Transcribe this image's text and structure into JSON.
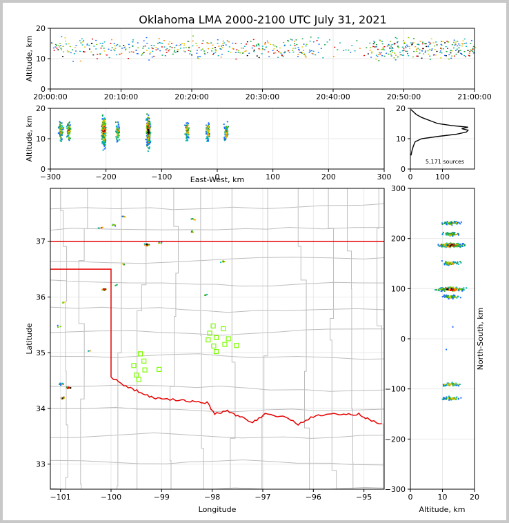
{
  "chart_data": {
    "type": "scatter",
    "title": "Oklahoma LMA 2000-2100 UTC July 31, 2021",
    "colors": {
      "source_palette": [
        "#1a6cff",
        "#00b4b4",
        "#14a03c",
        "#78c800",
        "#e6c800",
        "#ff8c00",
        "#e60000",
        "#000000"
      ],
      "state_border": "#e60000",
      "county_lines": "#bdbdbd",
      "station_markers": "#7cfc00",
      "grid": "#e8e8e8"
    },
    "time_altitude": {
      "ylabel": "Altitude, km",
      "ylim": [
        0,
        20
      ],
      "yticks": [
        "0",
        "10",
        "20"
      ],
      "xticks": [
        "20:00:00",
        "20:10:00",
        "20:20:00",
        "20:30:00",
        "20:40:00",
        "20:50:00",
        "21:00:00"
      ],
      "xlim_minutes": [
        0,
        60
      ],
      "activity_minutes": [
        {
          "from": 0,
          "to": 38,
          "weight": 3
        },
        {
          "from": 38,
          "to": 45,
          "weight": 1
        },
        {
          "from": 45,
          "to": 60,
          "weight": 5
        }
      ],
      "altitude_core_km": [
        11,
        16
      ]
    },
    "ew_altitude": {
      "ylabel": "Altitude, km",
      "xlabel": "East-West, km",
      "xlim": [
        -300,
        300
      ],
      "ylim": [
        0,
        20
      ],
      "xticks": [
        "−300",
        "−200",
        "−100",
        "0",
        "100",
        "200",
        "300"
      ],
      "yticks": [
        "0",
        "10",
        "20"
      ],
      "columns_km": [
        -282,
        -268,
        -205,
        -180,
        -125,
        -55,
        -18,
        15
      ]
    },
    "histogram": {
      "ylim": [
        0,
        20
      ],
      "xlim": [
        0,
        200
      ],
      "xticks": [
        "0",
        "100"
      ],
      "yticks": [
        "0",
        "10",
        "20"
      ],
      "label": "5,171 sources",
      "profile": [
        {
          "alt": 4.5,
          "count": 2
        },
        {
          "alt": 6,
          "count": 5
        },
        {
          "alt": 7.5,
          "count": 9
        },
        {
          "alt": 9,
          "count": 15
        },
        {
          "alt": 10,
          "count": 35
        },
        {
          "alt": 10.8,
          "count": 90
        },
        {
          "alt": 11.5,
          "count": 145
        },
        {
          "alt": 12.2,
          "count": 175
        },
        {
          "alt": 12.8,
          "count": 180
        },
        {
          "alt": 13.3,
          "count": 160
        },
        {
          "alt": 13.8,
          "count": 180
        },
        {
          "alt": 14.3,
          "count": 130
        },
        {
          "alt": 15,
          "count": 85
        },
        {
          "alt": 16,
          "count": 60
        },
        {
          "alt": 17,
          "count": 35
        },
        {
          "alt": 18,
          "count": 18
        },
        {
          "alt": 19,
          "count": 8
        },
        {
          "alt": 19.6,
          "count": 2
        }
      ]
    },
    "map": {
      "xlabel": "Longitude",
      "ylabel": "Latitude",
      "xlim": [
        -101.2,
        -94.6
      ],
      "ylim": [
        32.55,
        37.95
      ],
      "xticks": [
        "−101",
        "−100",
        "−99",
        "−98",
        "−97",
        "−96",
        "−95"
      ],
      "yticks": [
        "33",
        "34",
        "35",
        "36",
        "37"
      ],
      "clusters": [
        {
          "lon": -101.0,
          "lat": 34.45,
          "n": 10
        },
        {
          "lon": -100.85,
          "lat": 34.38,
          "n": 18
        },
        {
          "lon": -100.98,
          "lat": 34.2,
          "n": 14
        },
        {
          "lon": -101.05,
          "lat": 35.48,
          "n": 3
        },
        {
          "lon": -100.95,
          "lat": 35.92,
          "n": 4
        },
        {
          "lon": -100.15,
          "lat": 36.15,
          "n": 22
        },
        {
          "lon": -99.9,
          "lat": 36.22,
          "n": 3
        },
        {
          "lon": -99.75,
          "lat": 36.6,
          "n": 3
        },
        {
          "lon": -99.3,
          "lat": 36.95,
          "n": 26
        },
        {
          "lon": -99.05,
          "lat": 36.98,
          "n": 6
        },
        {
          "lon": -99.75,
          "lat": 37.45,
          "n": 6
        },
        {
          "lon": -99.95,
          "lat": 37.3,
          "n": 5
        },
        {
          "lon": -100.2,
          "lat": 37.25,
          "n": 4
        },
        {
          "lon": -98.4,
          "lat": 37.18,
          "n": 6
        },
        {
          "lon": -98.38,
          "lat": 37.4,
          "n": 5
        },
        {
          "lon": -97.8,
          "lat": 36.65,
          "n": 6
        },
        {
          "lon": -98.15,
          "lat": 36.05,
          "n": 4
        },
        {
          "lon": -100.45,
          "lat": 35.05,
          "n": 3
        }
      ],
      "stations": [
        {
          "lon": -99.42,
          "lat": 34.98
        },
        {
          "lon": -99.35,
          "lat": 34.85
        },
        {
          "lon": -99.55,
          "lat": 34.77
        },
        {
          "lon": -99.33,
          "lat": 34.69
        },
        {
          "lon": -99.05,
          "lat": 34.7
        },
        {
          "lon": -99.5,
          "lat": 34.6
        },
        {
          "lon": -99.45,
          "lat": 34.52
        },
        {
          "lon": -97.98,
          "lat": 35.48
        },
        {
          "lon": -98.05,
          "lat": 35.35
        },
        {
          "lon": -97.92,
          "lat": 35.27
        },
        {
          "lon": -98.08,
          "lat": 35.23
        },
        {
          "lon": -97.97,
          "lat": 35.12
        },
        {
          "lon": -97.92,
          "lat": 35.02
        },
        {
          "lon": -97.75,
          "lat": 35.15
        },
        {
          "lon": -97.68,
          "lat": 35.25
        },
        {
          "lon": -97.52,
          "lat": 35.13
        },
        {
          "lon": -97.78,
          "lat": 35.43
        }
      ]
    },
    "ns_altitude": {
      "ylabel": "North-South, km",
      "xlabel": "Altitude, km",
      "xlim": [
        0,
        20
      ],
      "ylim": [
        -300,
        300
      ],
      "xticks": [
        "0",
        "10",
        "20"
      ],
      "yticks": [
        "−300",
        "−200",
        "−100",
        "0",
        "100",
        "200",
        "300"
      ],
      "rows_km": [
        232,
        210,
        188,
        152,
        100,
        85,
        -90,
        -118
      ]
    }
  }
}
